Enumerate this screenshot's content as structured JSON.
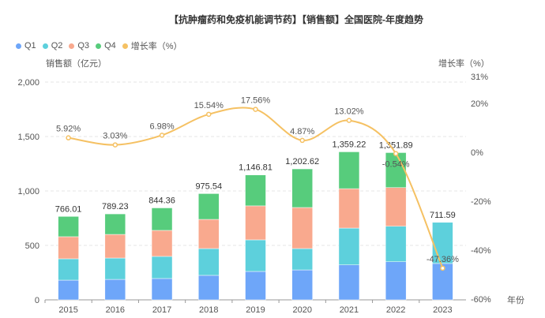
{
  "chart_data": {
    "type": "bar",
    "title": "【抗肿瘤药和免疫机能调节药】【销售额】全国医院-年度趋势",
    "categories": [
      "2015",
      "2016",
      "2017",
      "2018",
      "2019",
      "2020",
      "2021",
      "2022",
      "2023"
    ],
    "series": [
      {
        "name": "Q1",
        "color": "#6ea6f9",
        "values": [
          181,
          188,
          196,
          225,
          261,
          275,
          321,
          350,
          334
        ]
      },
      {
        "name": "Q2",
        "color": "#5dd0dc",
        "values": [
          196,
          196,
          203,
          246,
          290,
          196,
          338,
          326,
          377.59
        ]
      },
      {
        "name": "Q3",
        "color": "#f9a98e",
        "values": [
          203,
          217,
          239,
          268,
          312,
          377,
          362,
          355,
          null
        ]
      },
      {
        "name": "Q4",
        "color": "#57cc7c",
        "values": [
          186.01,
          188.23,
          206.36,
          236.54,
          283.81,
          354.62,
          338.22,
          320.89,
          null
        ]
      }
    ],
    "totals": [
      "766.01",
      "789.23",
      "844.36",
      "975.54",
      "1,146.81",
      "1,202.62",
      "1,359.22",
      "1,351.89",
      "711.59"
    ],
    "growth": {
      "name": "增长率（%）",
      "color": "#f5c163",
      "values": [
        5.92,
        3.03,
        6.98,
        15.54,
        17.56,
        4.87,
        13.02,
        -0.54,
        -47.36
      ],
      "labels": [
        "5.92%",
        "3.03%",
        "6.98%",
        "15.54%",
        "17.56%",
        "4.87%",
        "13.02%",
        "-0.54%",
        "-47.36%"
      ]
    },
    "ylabel": "销售额（亿元）",
    "ylabel_right": "增长率（%）",
    "xlabel": "年份",
    "ylim": [
      0,
      2000
    ],
    "yticks": [
      "0",
      "500",
      "1,000",
      "1,500",
      "2,000"
    ],
    "ylim_right": [
      -60,
      31
    ],
    "yticks_right": [
      "-60%",
      "-40%",
      "-20%",
      "0%",
      "20%",
      "31%"
    ],
    "grid": true,
    "legend_position": "top-left"
  }
}
